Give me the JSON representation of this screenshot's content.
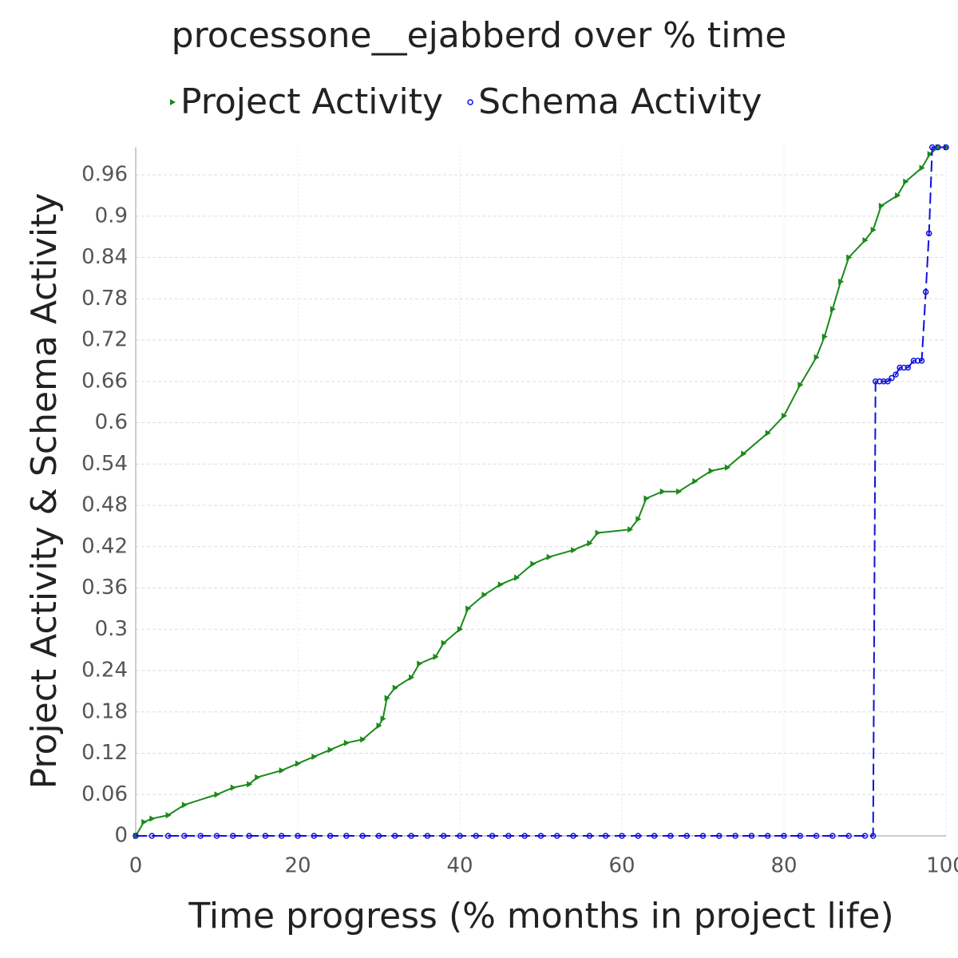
{
  "chart_data": {
    "type": "line",
    "title": "processone__ejabberd over % time",
    "x_label": "Time progress (% months in project life)",
    "y_label": "Project Activity & Schema Activity",
    "xlim": [
      0,
      100
    ],
    "xticks": [
      0,
      20,
      40,
      60,
      80,
      100
    ],
    "ylim": [
      0,
      1
    ],
    "yticks": [
      0,
      0.06,
      0.12,
      0.18,
      0.24,
      0.3,
      0.36,
      0.42,
      0.48,
      0.54,
      0.6,
      0.66,
      0.72,
      0.78,
      0.84,
      0.9,
      0.96
    ],
    "grid": true,
    "legend": "top",
    "series": [
      {
        "name": "Project Activity",
        "color": "#1a8a1a",
        "marker": "triangle",
        "dash": false,
        "x": [
          0,
          1,
          2,
          4,
          6,
          10,
          12,
          14,
          15,
          18,
          20,
          22,
          24,
          26,
          28,
          30,
          30.5,
          31,
          32,
          34,
          35,
          37,
          38,
          40,
          41,
          43,
          45,
          47,
          49,
          51,
          54,
          56,
          57,
          61,
          62,
          63,
          65,
          67,
          69,
          71,
          73,
          75,
          78,
          80,
          82,
          84,
          85,
          86,
          87,
          88,
          90,
          91,
          92,
          94,
          95,
          97,
          98,
          99,
          100
        ],
        "values": [
          0,
          0.02,
          0.025,
          0.03,
          0.045,
          0.06,
          0.07,
          0.075,
          0.085,
          0.095,
          0.105,
          0.115,
          0.125,
          0.135,
          0.14,
          0.16,
          0.17,
          0.2,
          0.215,
          0.23,
          0.25,
          0.26,
          0.28,
          0.3,
          0.33,
          0.35,
          0.365,
          0.375,
          0.395,
          0.405,
          0.415,
          0.425,
          0.44,
          0.445,
          0.46,
          0.49,
          0.5,
          0.5,
          0.515,
          0.53,
          0.535,
          0.555,
          0.585,
          0.61,
          0.655,
          0.695,
          0.725,
          0.765,
          0.805,
          0.84,
          0.865,
          0.88,
          0.915,
          0.93,
          0.95,
          0.97,
          0.99,
          1.0,
          1.0
        ]
      },
      {
        "name": "Schema Activity",
        "color": "#1010e0",
        "marker": "circle",
        "dash": true,
        "x": [
          0,
          2,
          4,
          6,
          8,
          10,
          12,
          14,
          16,
          18,
          20,
          22,
          24,
          26,
          28,
          30,
          32,
          34,
          36,
          38,
          40,
          42,
          44,
          46,
          48,
          50,
          52,
          54,
          56,
          58,
          60,
          62,
          64,
          66,
          68,
          70,
          72,
          74,
          76,
          78,
          80,
          82,
          84,
          86,
          88,
          90,
          91,
          91.3,
          91.8,
          92.3,
          92.8,
          93.3,
          93.8,
          94.3,
          94.8,
          95.3,
          96,
          96.5,
          97,
          97.5,
          97.9,
          98.3,
          99,
          100
        ],
        "values": [
          0,
          0,
          0,
          0,
          0,
          0,
          0,
          0,
          0,
          0,
          0,
          0,
          0,
          0,
          0,
          0,
          0,
          0,
          0,
          0,
          0,
          0,
          0,
          0,
          0,
          0,
          0,
          0,
          0,
          0,
          0,
          0,
          0,
          0,
          0,
          0,
          0,
          0,
          0,
          0,
          0,
          0,
          0,
          0,
          0,
          0,
          0,
          0.66,
          0.66,
          0.66,
          0.66,
          0.665,
          0.67,
          0.68,
          0.68,
          0.68,
          0.69,
          0.69,
          0.69,
          0.79,
          0.875,
          1.0,
          1.0,
          1.0
        ]
      }
    ]
  }
}
